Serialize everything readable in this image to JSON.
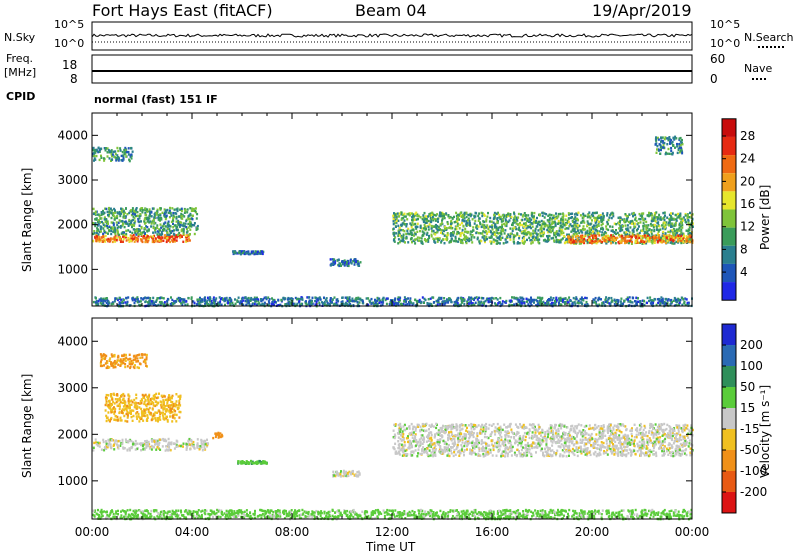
{
  "header": {
    "radar": "Fort Hays East (fitACF)",
    "beam": "Beam 04",
    "date": "19/Apr/2019"
  },
  "strips": {
    "noise": {
      "left_label": "N.Sky",
      "right_label": "N.Search",
      "left_ticks": [
        "10^5",
        "10^0"
      ],
      "right_ticks": [
        "10^5",
        "10^0"
      ]
    },
    "freq": {
      "left_label_1": "Freq.",
      "left_label_2": "[MHz]",
      "right_label": "Nave",
      "left_ticks": [
        "18",
        "8"
      ],
      "right_ticks": [
        "60",
        "0"
      ]
    },
    "cpid": {
      "label": "CPID",
      "value": "normal (fast) 151 IF"
    }
  },
  "chart_data": [
    {
      "type": "heatmap",
      "panel": "power",
      "ylabel": "Slant Range [km]",
      "yticks": [
        1000,
        2000,
        3000,
        4000
      ],
      "ylim": [
        180,
        4500
      ],
      "xlim_hours": [
        0,
        24
      ],
      "colorbar": {
        "label": "Power [dB]",
        "ticks": [
          "4",
          "8",
          "12",
          "16",
          "20",
          "24",
          "28"
        ],
        "colors": [
          "#1f28e6",
          "#1e56b8",
          "#2a7f8f",
          "#3a9c5a",
          "#7fc43a",
          "#e6e62c",
          "#f0a01c",
          "#ef6a12",
          "#e62a12",
          "#c80c0c"
        ]
      },
      "regions": [
        {
          "t0": 0.0,
          "t1": 3.9,
          "r_center": 1720,
          "r_width": 160,
          "value": 22
        },
        {
          "t0": 0.0,
          "t1": 4.2,
          "r_center": 2100,
          "r_width": 600,
          "value": 10
        },
        {
          "t0": 0.0,
          "t1": 1.6,
          "r_center": 3600,
          "r_width": 300,
          "value": 9
        },
        {
          "t0": 5.6,
          "t1": 6.9,
          "r_center": 1400,
          "r_width": 70,
          "value": 6
        },
        {
          "t0": 9.5,
          "t1": 10.7,
          "r_center": 1180,
          "r_width": 150,
          "value": 6
        },
        {
          "t0": 12.0,
          "t1": 24.0,
          "r_center": 1950,
          "r_width": 700,
          "value": 11
        },
        {
          "t0": 19.0,
          "t1": 24.0,
          "r_center": 1700,
          "r_width": 180,
          "value": 21
        },
        {
          "t0": 22.5,
          "t1": 23.6,
          "r_center": 3800,
          "r_width": 400,
          "value": 8
        },
        {
          "t0": 0.0,
          "t1": 24.0,
          "r_center": 300,
          "r_width": 200,
          "value": 7
        }
      ]
    },
    {
      "type": "heatmap",
      "panel": "velocity",
      "ylabel": "Slant Range [km]",
      "yticks": [
        1000,
        2000,
        3000,
        4000
      ],
      "ylim": [
        180,
        4500
      ],
      "xlim_hours": [
        0,
        24
      ],
      "xticks": [
        "00:00",
        "04:00",
        "08:00",
        "12:00",
        "16:00",
        "20:00",
        "00:00"
      ],
      "xlabel": "Time UT",
      "colorbar": {
        "label": "Velocity [m s⁻¹]",
        "ticks": [
          "200",
          "100",
          "50",
          "15",
          "-15",
          "-50",
          "-100",
          "-200"
        ],
        "colors": [
          "#1e2ad2",
          "#2a6ab4",
          "#2f8f5a",
          "#5acc3a",
          "#c8c8c8",
          "#f0c020",
          "#f09018",
          "#e85a14",
          "#dc1414"
        ]
      },
      "regions": [
        {
          "t0": 0.0,
          "t1": 4.6,
          "r_center": 1800,
          "r_width": 250,
          "value": 0
        },
        {
          "t0": 0.5,
          "t1": 3.5,
          "r_center": 2600,
          "r_width": 600,
          "value": -40
        },
        {
          "t0": 0.3,
          "t1": 2.2,
          "r_center": 3600,
          "r_width": 300,
          "value": -60
        },
        {
          "t0": 4.8,
          "t1": 5.2,
          "r_center": 2000,
          "r_width": 120,
          "value": -80
        },
        {
          "t0": 5.8,
          "t1": 7.0,
          "r_center": 1420,
          "r_width": 60,
          "value": 40
        },
        {
          "t0": 9.6,
          "t1": 10.7,
          "r_center": 1180,
          "r_width": 120,
          "value": 0
        },
        {
          "t0": 12.0,
          "t1": 24.0,
          "r_center": 1900,
          "r_width": 700,
          "value": 0
        },
        {
          "t0": 0.0,
          "t1": 24.0,
          "r_center": 300,
          "r_width": 200,
          "value": 30
        }
      ]
    }
  ]
}
